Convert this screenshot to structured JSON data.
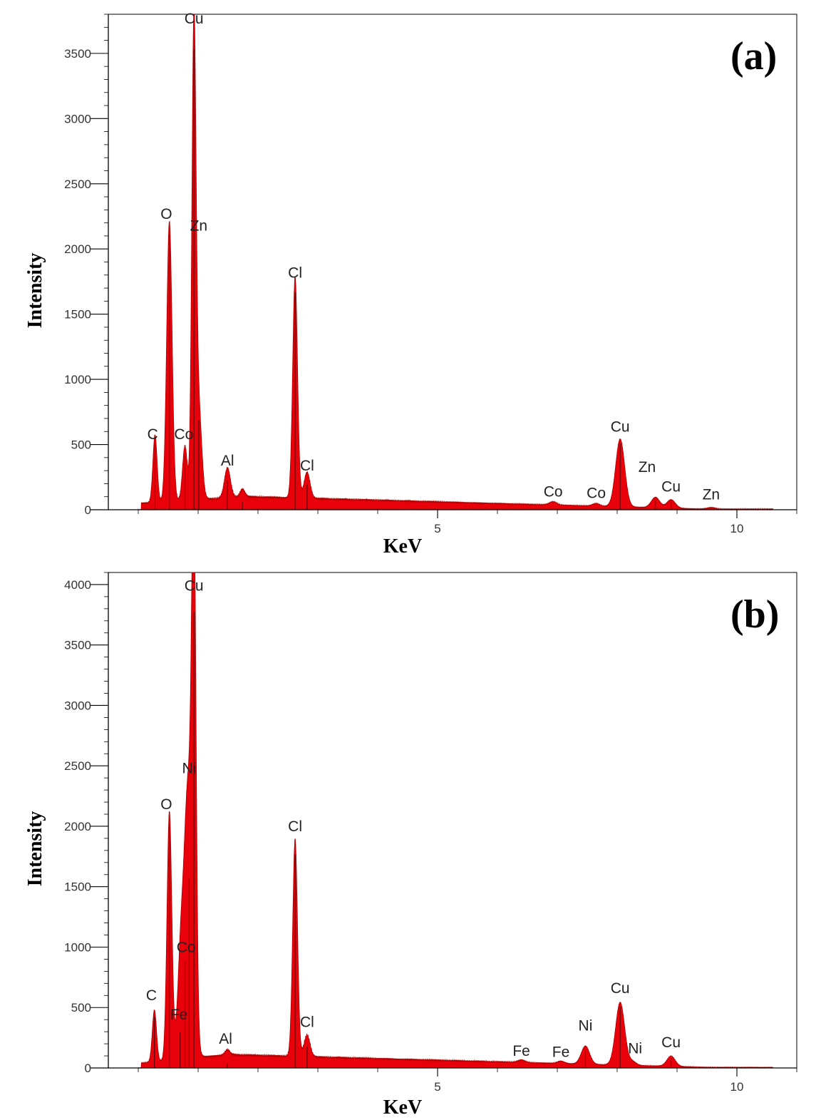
{
  "chart_data": [
    {
      "type": "area",
      "panel_label": "(a)",
      "xlabel": "KeV",
      "ylabel": "Intensity",
      "xlim": [
        -0.5,
        11.0
      ],
      "ylim": [
        0,
        3800
      ],
      "x_ticks": [
        5,
        10
      ],
      "y_ticks": [
        0,
        500,
        1000,
        1500,
        2000,
        2500,
        3000,
        3500
      ],
      "series_color": "#e8000b",
      "background": {
        "start": 50,
        "mid_x": 1.8,
        "mid_y": 100,
        "end": 5
      },
      "peaks": [
        {
          "x": 0.28,
          "y": 520,
          "w": 0.035
        },
        {
          "x": 0.52,
          "y": 2150,
          "w": 0.045
        },
        {
          "x": 0.78,
          "y": 420,
          "w": 0.04
        },
        {
          "x": 0.93,
          "y": 3600,
          "w": 0.035
        },
        {
          "x": 1.01,
          "y": 700,
          "w": 0.05
        },
        {
          "x": 1.49,
          "y": 230,
          "w": 0.05
        },
        {
          "x": 1.74,
          "y": 60,
          "w": 0.04
        },
        {
          "x": 2.62,
          "y": 1700,
          "w": 0.04
        },
        {
          "x": 2.82,
          "y": 200,
          "w": 0.05
        },
        {
          "x": 6.93,
          "y": 25,
          "w": 0.06
        },
        {
          "x": 7.65,
          "y": 20,
          "w": 0.06
        },
        {
          "x": 8.05,
          "y": 520,
          "w": 0.075
        },
        {
          "x": 8.64,
          "y": 80,
          "w": 0.07
        },
        {
          "x": 8.9,
          "y": 65,
          "w": 0.07
        },
        {
          "x": 9.57,
          "y": 12,
          "w": 0.07
        }
      ],
      "annotations": [
        {
          "text": "Cu",
          "x": 0.93,
          "y": 3730
        },
        {
          "text": "O",
          "x": 0.47,
          "y": 2230
        },
        {
          "text": "Zn",
          "x": 1.01,
          "y": 2140
        },
        {
          "text": "Cl",
          "x": 2.62,
          "y": 1780
        },
        {
          "text": "C",
          "x": 0.24,
          "y": 540
        },
        {
          "text": "Co",
          "x": 0.76,
          "y": 540
        },
        {
          "text": "Al",
          "x": 1.49,
          "y": 340
        },
        {
          "text": "Cl",
          "x": 2.82,
          "y": 300
        },
        {
          "text": "Co",
          "x": 6.93,
          "y": 100
        },
        {
          "text": "Co",
          "x": 7.65,
          "y": 90
        },
        {
          "text": "Cu",
          "x": 8.05,
          "y": 600
        },
        {
          "text": "Zn",
          "x": 8.5,
          "y": 290
        },
        {
          "text": "Cu",
          "x": 8.9,
          "y": 140
        },
        {
          "text": "Zn",
          "x": 9.57,
          "y": 80
        }
      ]
    },
    {
      "type": "area",
      "panel_label": "(b)",
      "xlabel": "KeV",
      "ylabel": "Intensity",
      "xlim": [
        -0.5,
        11.0
      ],
      "ylim": [
        0,
        4100
      ],
      "x_ticks": [
        5,
        10
      ],
      "y_ticks": [
        0,
        500,
        1000,
        1500,
        2000,
        2500,
        3000,
        3500,
        4000
      ],
      "series_color": "#e8000b",
      "background": {
        "start": 40,
        "mid_x": 1.5,
        "mid_y": 110,
        "end": 5
      },
      "peaks": [
        {
          "x": 0.27,
          "y": 430,
          "w": 0.035
        },
        {
          "x": 0.52,
          "y": 2050,
          "w": 0.04
        },
        {
          "x": 0.7,
          "y": 300,
          "w": 0.04
        },
        {
          "x": 0.78,
          "y": 900,
          "w": 0.09
        },
        {
          "x": 0.85,
          "y": 1600,
          "w": 0.07
        },
        {
          "x": 0.93,
          "y": 3850,
          "w": 0.035
        },
        {
          "x": 1.49,
          "y": 40,
          "w": 0.04
        },
        {
          "x": 2.62,
          "y": 1800,
          "w": 0.04
        },
        {
          "x": 2.82,
          "y": 180,
          "w": 0.05
        },
        {
          "x": 6.4,
          "y": 20,
          "w": 0.06
        },
        {
          "x": 7.06,
          "y": 20,
          "w": 0.06
        },
        {
          "x": 7.47,
          "y": 150,
          "w": 0.07
        },
        {
          "x": 8.05,
          "y": 520,
          "w": 0.075
        },
        {
          "x": 8.26,
          "y": 30,
          "w": 0.06
        },
        {
          "x": 8.9,
          "y": 85,
          "w": 0.07
        }
      ],
      "annotations": [
        {
          "text": "Cu",
          "x": 0.93,
          "y": 3950
        },
        {
          "text": "Ni",
          "x": 0.85,
          "y": 2440
        },
        {
          "text": "O",
          "x": 0.47,
          "y": 2140
        },
        {
          "text": "Cl",
          "x": 2.62,
          "y": 1960
        },
        {
          "text": "Co",
          "x": 0.8,
          "y": 960
        },
        {
          "text": "C",
          "x": 0.22,
          "y": 560
        },
        {
          "text": "Fe",
          "x": 0.68,
          "y": 400
        },
        {
          "text": "Al",
          "x": 1.46,
          "y": 200
        },
        {
          "text": "Cl",
          "x": 2.82,
          "y": 340
        },
        {
          "text": "Fe",
          "x": 6.4,
          "y": 100
        },
        {
          "text": "Fe",
          "x": 7.06,
          "y": 90
        },
        {
          "text": "Ni",
          "x": 7.47,
          "y": 310
        },
        {
          "text": "Cu",
          "x": 8.05,
          "y": 620
        },
        {
          "text": "Ni",
          "x": 8.3,
          "y": 120
        },
        {
          "text": "Cu",
          "x": 8.9,
          "y": 170
        }
      ]
    }
  ]
}
